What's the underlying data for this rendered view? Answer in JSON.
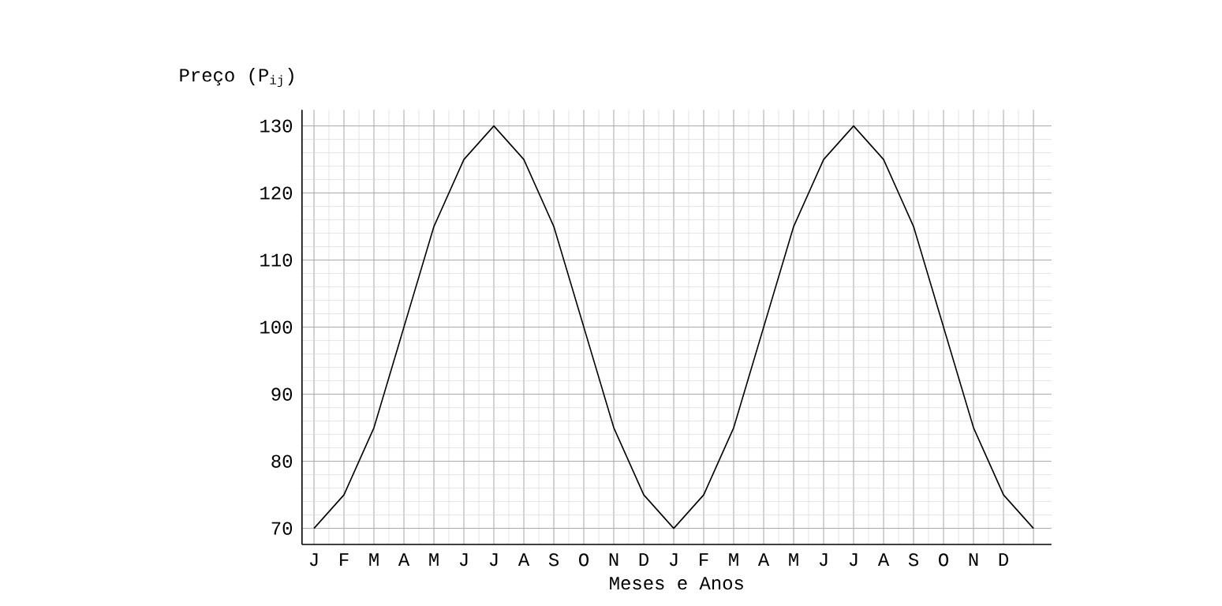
{
  "chart_data": {
    "type": "line",
    "xlabel": "Meses e Anos",
    "ylabel": "Preço (P$_{ij}$)",
    "categories": [
      "J",
      "F",
      "M",
      "A",
      "M",
      "J",
      "J",
      "A",
      "S",
      "O",
      "N",
      "D",
      "J",
      "F",
      "M",
      "A",
      "M",
      "J",
      "J",
      "A",
      "S",
      "O",
      "N",
      "D",
      null
    ],
    "series": [
      {
        "color": "#000000",
        "values": [
          70,
          75,
          85,
          100,
          115,
          125,
          130,
          125,
          115,
          100,
          85,
          75,
          70,
          75,
          85,
          100,
          115,
          125,
          130,
          125,
          115,
          100,
          85,
          75,
          70
        ]
      }
    ],
    "ylim": [
      70,
      130
    ],
    "yticks": [
      70,
      80,
      90,
      100,
      110,
      120,
      130
    ],
    "grid": true,
    "marker": "none",
    "line_style": "solid"
  }
}
